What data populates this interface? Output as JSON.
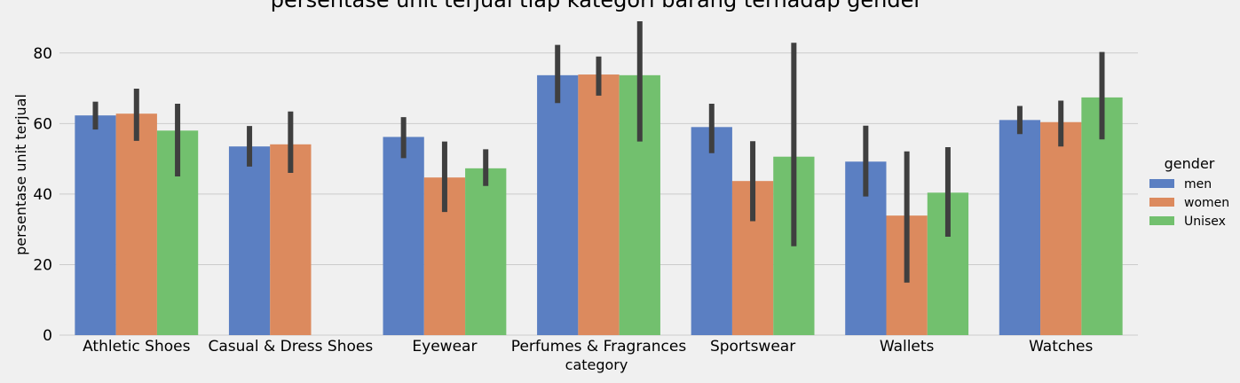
{
  "chart_data": {
    "type": "bar",
    "title": "persentase unit terjual tiap kategori barang terhadap gender",
    "xlabel": "category",
    "ylabel": "persentase unit terjual",
    "ylim": [
      0,
      90
    ],
    "yticks": [
      0,
      20,
      40,
      60,
      80
    ],
    "grid": true,
    "categories": [
      "Athletic Shoes",
      "Casual & Dress Shoes",
      "Eyewear",
      "Perfumes & Fragrances",
      "Sportswear",
      "Wallets",
      "Watches"
    ],
    "legend": {
      "title": "gender",
      "placement": "right"
    },
    "series": [
      {
        "name": "men",
        "color": "#5b7fc2",
        "values": [
          62.3,
          53.5,
          56.2,
          73.7,
          59.0,
          49.2,
          61.0
        ],
        "error_low": [
          58.3,
          47.8,
          50.2,
          65.8,
          51.6,
          39.3,
          57.0
        ],
        "error_high": [
          66.2,
          59.3,
          61.8,
          82.3,
          65.6,
          59.4,
          65.0
        ]
      },
      {
        "name": "women",
        "color": "#dc8a5e",
        "values": [
          62.8,
          54.1,
          44.7,
          73.9,
          43.7,
          33.9,
          60.4
        ],
        "error_low": [
          55.1,
          46.0,
          34.9,
          67.9,
          32.3,
          14.9,
          53.5
        ],
        "error_high": [
          69.9,
          63.4,
          54.9,
          79.0,
          55.0,
          52.1,
          66.5
        ]
      },
      {
        "name": "Unisex",
        "color": "#72c06e",
        "values": [
          58.0,
          null,
          47.3,
          73.7,
          50.6,
          40.4,
          67.4
        ],
        "error_low": [
          45.0,
          null,
          42.3,
          54.9,
          25.2,
          27.9,
          55.5
        ],
        "error_high": [
          65.6,
          null,
          52.7,
          89.0,
          82.9,
          53.3,
          80.3
        ]
      }
    ]
  }
}
